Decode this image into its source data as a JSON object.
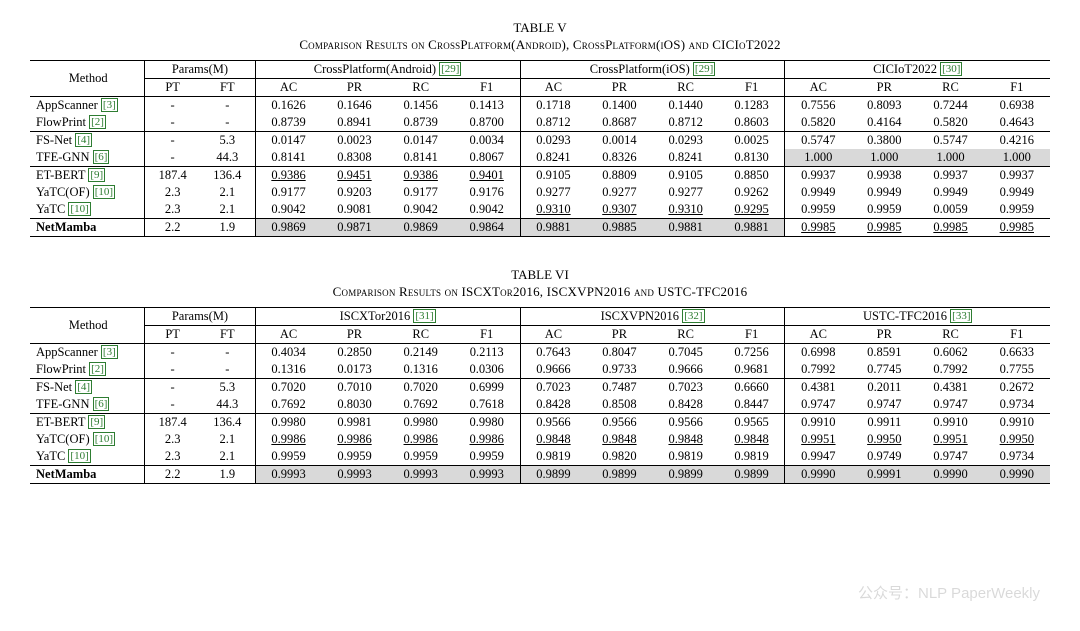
{
  "tableV": {
    "caption_num": "TABLE V",
    "caption": "Comparison Results on CrossPlatform(Android), CrossPlatform(iOS) and CICIoT2022",
    "method_header": "Method",
    "params_header": "Params(M)",
    "params_sub": [
      "PT",
      "FT"
    ],
    "groups": [
      {
        "title": "CrossPlatform(Android)",
        "cite": "[29]"
      },
      {
        "title": "CrossPlatform(iOS)",
        "cite": "[29]"
      },
      {
        "title": "CICIoT2022",
        "cite": "[30]"
      }
    ],
    "metric_sub": [
      "AC",
      "PR",
      "RC",
      "F1"
    ],
    "sections": [
      [
        {
          "method": "AppScanner",
          "cite": "[3]",
          "pt": "-",
          "ft": "-",
          "v": [
            "0.1626",
            "0.1646",
            "0.1456",
            "0.1413",
            "0.1718",
            "0.1400",
            "0.1440",
            "0.1283",
            "0.7556",
            "0.8093",
            "0.7244",
            "0.6938"
          ]
        },
        {
          "method": "FlowPrint",
          "cite": "[2]",
          "pt": "-",
          "ft": "-",
          "v": [
            "0.8739",
            "0.8941",
            "0.8739",
            "0.8700",
            "0.8712",
            "0.8687",
            "0.8712",
            "0.8603",
            "0.5820",
            "0.4164",
            "0.5820",
            "0.4643"
          ]
        }
      ],
      [
        {
          "method": "FS-Net",
          "cite": "[4]",
          "pt": "-",
          "ft": "5.3",
          "v": [
            "0.0147",
            "0.0023",
            "0.0147",
            "0.0034",
            "0.0293",
            "0.0014",
            "0.0293",
            "0.0025",
            "0.5747",
            "0.3800",
            "0.5747",
            "0.4216"
          ]
        },
        {
          "method": "TFE-GNN",
          "cite": "[6]",
          "pt": "-",
          "ft": "44.3",
          "v": [
            "0.8141",
            "0.8308",
            "0.8141",
            "0.8067",
            "0.8241",
            "0.8326",
            "0.8241",
            "0.8130",
            "1.000",
            "1.000",
            "1.000",
            "1.000"
          ],
          "hl_idx": [
            8,
            9,
            10,
            11
          ]
        }
      ],
      [
        {
          "method": "ET-BERT",
          "cite": "[9]",
          "pt": "187.4",
          "ft": "136.4",
          "v": [
            "0.9386",
            "0.9451",
            "0.9386",
            "0.9401",
            "0.9105",
            "0.8809",
            "0.9105",
            "0.8850",
            "0.9937",
            "0.9938",
            "0.9937",
            "0.9937"
          ],
          "ul_idx": [
            0,
            1,
            2,
            3
          ]
        },
        {
          "method": "YaTC(OF)",
          "cite": "[10]",
          "pt": "2.3",
          "ft": "2.1",
          "v": [
            "0.9177",
            "0.9203",
            "0.9177",
            "0.9176",
            "0.9277",
            "0.9277",
            "0.9277",
            "0.9262",
            "0.9949",
            "0.9949",
            "0.9949",
            "0.9949"
          ]
        },
        {
          "method": "YaTC",
          "cite": "[10]",
          "pt": "2.3",
          "ft": "2.1",
          "v": [
            "0.9042",
            "0.9081",
            "0.9042",
            "0.9042",
            "0.9310",
            "0.9307",
            "0.9310",
            "0.9295",
            "0.9959",
            "0.9959",
            "0.0059",
            "0.9959"
          ],
          "ul_idx": [
            4,
            5,
            6,
            7
          ]
        }
      ],
      [
        {
          "method": "NetMamba",
          "bold": true,
          "pt": "2.2",
          "ft": "1.9",
          "v": [
            "0.9869",
            "0.9871",
            "0.9869",
            "0.9864",
            "0.9881",
            "0.9885",
            "0.9881",
            "0.9881",
            "0.9985",
            "0.9985",
            "0.9985",
            "0.9985"
          ],
          "hl_idx": [
            0,
            1,
            2,
            3,
            4,
            5,
            6,
            7
          ],
          "ul_idx": [
            8,
            9,
            10,
            11
          ]
        }
      ]
    ]
  },
  "tableVI": {
    "caption_num": "TABLE VI",
    "caption": "Comparison Results on ISCXTor2016, ISCXVPN2016 and USTC-TFC2016",
    "method_header": "Method",
    "params_header": "Params(M)",
    "params_sub": [
      "PT",
      "FT"
    ],
    "groups": [
      {
        "title": "ISCXTor2016",
        "cite": "[31]"
      },
      {
        "title": "ISCXVPN2016",
        "cite": "[32]"
      },
      {
        "title": "USTC-TFC2016",
        "cite": "[33]"
      }
    ],
    "metric_sub": [
      "AC",
      "PR",
      "RC",
      "F1"
    ],
    "sections": [
      [
        {
          "method": "AppScanner",
          "cite": "[3]",
          "pt": "-",
          "ft": "-",
          "v": [
            "0.4034",
            "0.2850",
            "0.2149",
            "0.2113",
            "0.7643",
            "0.8047",
            "0.7045",
            "0.7256",
            "0.6998",
            "0.8591",
            "0.6062",
            "0.6633"
          ]
        },
        {
          "method": "FlowPrint",
          "cite": "[2]",
          "pt": "-",
          "ft": "-",
          "v": [
            "0.1316",
            "0.0173",
            "0.1316",
            "0.0306",
            "0.9666",
            "0.9733",
            "0.9666",
            "0.9681",
            "0.7992",
            "0.7745",
            "0.7992",
            "0.7755"
          ]
        }
      ],
      [
        {
          "method": "FS-Net",
          "cite": "[4]",
          "pt": "-",
          "ft": "5.3",
          "v": [
            "0.7020",
            "0.7010",
            "0.7020",
            "0.6999",
            "0.7023",
            "0.7487",
            "0.7023",
            "0.6660",
            "0.4381",
            "0.2011",
            "0.4381",
            "0.2672"
          ]
        },
        {
          "method": "TFE-GNN",
          "cite": "[6]",
          "pt": "-",
          "ft": "44.3",
          "v": [
            "0.7692",
            "0.8030",
            "0.7692",
            "0.7618",
            "0.8428",
            "0.8508",
            "0.8428",
            "0.8447",
            "0.9747",
            "0.9747",
            "0.9747",
            "0.9734"
          ]
        }
      ],
      [
        {
          "method": "ET-BERT",
          "cite": "[9]",
          "pt": "187.4",
          "ft": "136.4",
          "v": [
            "0.9980",
            "0.9981",
            "0.9980",
            "0.9980",
            "0.9566",
            "0.9566",
            "0.9566",
            "0.9565",
            "0.9910",
            "0.9911",
            "0.9910",
            "0.9910"
          ]
        },
        {
          "method": "YaTC(OF)",
          "cite": "[10]",
          "pt": "2.3",
          "ft": "2.1",
          "v": [
            "0.9986",
            "0.9986",
            "0.9986",
            "0.9986",
            "0.9848",
            "0.9848",
            "0.9848",
            "0.9848",
            "0.9951",
            "0.9950",
            "0.9951",
            "0.9950"
          ],
          "ul_idx": [
            0,
            1,
            2,
            3,
            4,
            5,
            6,
            7,
            8,
            9,
            10,
            11
          ]
        },
        {
          "method": "YaTC",
          "cite": "[10]",
          "pt": "2.3",
          "ft": "2.1",
          "v": [
            "0.9959",
            "0.9959",
            "0.9959",
            "0.9959",
            "0.9819",
            "0.9820",
            "0.9819",
            "0.9819",
            "0.9947",
            "0.9749",
            "0.9747",
            "0.9734"
          ]
        }
      ],
      [
        {
          "method": "NetMamba",
          "bold": true,
          "pt": "2.2",
          "ft": "1.9",
          "v": [
            "0.9993",
            "0.9993",
            "0.9993",
            "0.9993",
            "0.9899",
            "0.9899",
            "0.9899",
            "0.9899",
            "0.9990",
            "0.9991",
            "0.9990",
            "0.9990"
          ],
          "hl_idx": [
            0,
            1,
            2,
            3,
            4,
            5,
            6,
            7,
            8,
            9,
            10,
            11
          ]
        }
      ]
    ]
  },
  "watermark": "公众号：NLP PaperWeekly"
}
